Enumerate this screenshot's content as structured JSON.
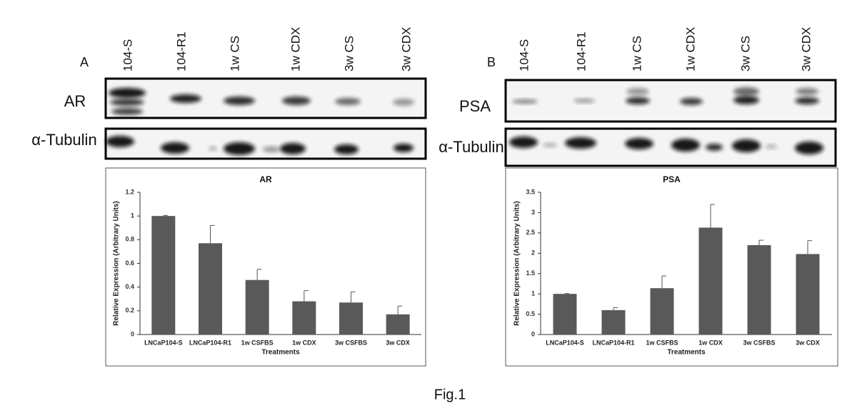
{
  "figure": {
    "caption": "Fig.1"
  },
  "panels": [
    {
      "label": "A",
      "lanes": [
        "104-S",
        "104-R1",
        "1w CS",
        "1w CDX",
        "3w CS",
        "3w CDX"
      ],
      "blots": [
        "AR",
        "α-Tubulin"
      ]
    },
    {
      "label": "B",
      "lanes": [
        "104-S",
        "104-R1",
        "1w CS",
        "1w CDX",
        "3w CS",
        "3w CDX"
      ],
      "blots": [
        "PSA",
        "α-Tubulin"
      ]
    }
  ],
  "chart_data": [
    {
      "type": "bar",
      "title": "AR",
      "xlabel": "Treatments",
      "ylabel": "Relative Expression (Arbitrary Units)",
      "categories": [
        "LNCaP104-S",
        "LNCaP104-R1",
        "1w CSFBS",
        "1w CDX",
        "3w CSFBS",
        "3w CDX"
      ],
      "series": [
        {
          "color": "#595959",
          "values": [
            1.0,
            0.77,
            0.46,
            0.28,
            0.27,
            0.17
          ],
          "errors": [
            0.005,
            0.15,
            0.09,
            0.09,
            0.09,
            0.07
          ]
        }
      ],
      "ylim": [
        0,
        1.2
      ],
      "yticks": [
        0,
        0.2,
        0.4,
        0.6,
        0.8,
        1,
        1.2
      ]
    },
    {
      "type": "bar",
      "title": "PSA",
      "xlabel": "Treatments",
      "ylabel": "Relative Expression (Arbitrary Units)",
      "categories": [
        "LNCaP104-S",
        "LNCaP104-R1",
        "1w CSFBS",
        "1w CDX",
        "3w CSFBS",
        "3w CDX"
      ],
      "series": [
        {
          "color": "#595959",
          "values": [
            1.0,
            0.6,
            1.14,
            2.63,
            2.2,
            1.98
          ],
          "errors": [
            0.01,
            0.06,
            0.3,
            0.57,
            0.12,
            0.33
          ]
        }
      ],
      "ylim": [
        0,
        3.5
      ],
      "yticks": [
        0,
        0.5,
        1,
        1.5,
        2,
        2.5,
        3,
        3.5
      ]
    }
  ]
}
